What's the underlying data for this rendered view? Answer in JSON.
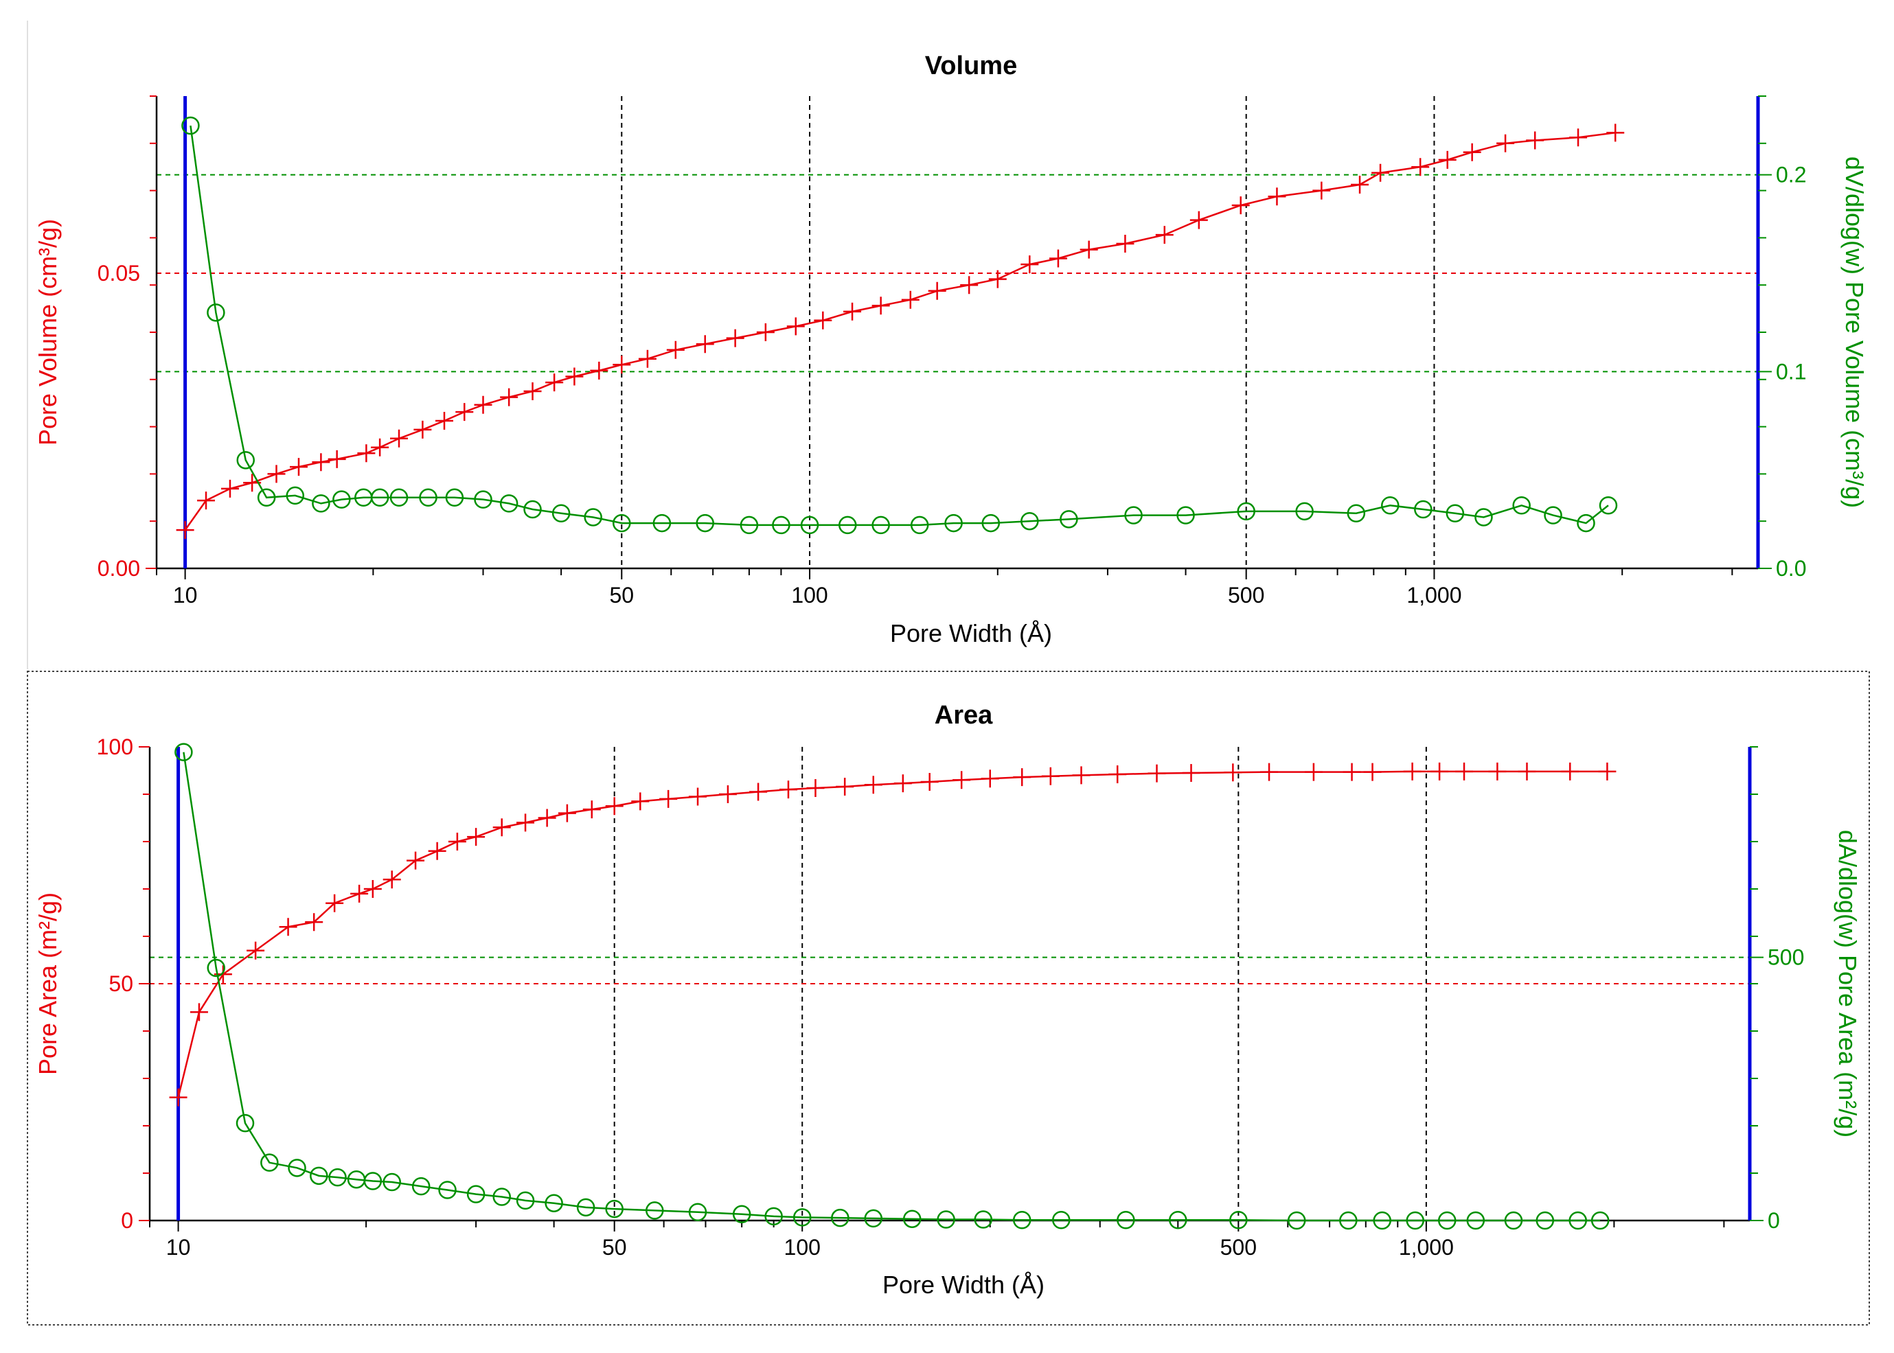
{
  "chart_data": [
    {
      "type": "line",
      "title": "Volume",
      "xlabel": "Pore Width (Å)",
      "ylabel": "Pore Volume (cm³/g)",
      "y2label": "dV/dlog(w) Pore Volume (cm³/g)",
      "xscale": "log",
      "xlim": [
        9,
        3300
      ],
      "ylim": [
        0,
        0.08
      ],
      "y2lim": [
        0,
        0.24
      ],
      "x_ticks": [
        10,
        50,
        100,
        500,
        1000
      ],
      "x_tick_labels": [
        "10",
        "50",
        "100",
        "500",
        "1,000"
      ],
      "y_ticks": [
        0,
        0.05
      ],
      "y_tick_labels": [
        "0.00",
        "0.05"
      ],
      "y2_ticks": [
        0,
        0.1,
        0.2
      ],
      "y2_tick_labels": [
        "0.0",
        "0.1",
        "0.2"
      ],
      "grid": true,
      "colors": {
        "cumulative": "#e8000b",
        "differential": "#009000",
        "axis": "#0000dd"
      },
      "series": [
        {
          "axis": "left",
          "marker": "plus",
          "color": "#e8000b",
          "x": [
            10,
            10.8,
            11.8,
            12.8,
            14,
            15.2,
            16.5,
            17.5,
            19.5,
            20.5,
            22,
            24,
            26,
            28,
            30,
            33,
            36,
            39,
            42,
            46,
            50,
            55,
            61,
            68,
            76,
            85,
            95,
            105,
            117,
            130,
            145,
            160,
            180,
            200,
            225,
            250,
            280,
            320,
            370,
            420,
            490,
            560,
            660,
            760,
            820,
            950,
            1050,
            1150,
            1300,
            1450,
            1700,
            1950
          ],
          "y": [
            0.0065,
            0.0115,
            0.0135,
            0.0145,
            0.016,
            0.0172,
            0.018,
            0.0185,
            0.0195,
            0.0205,
            0.022,
            0.0235,
            0.025,
            0.0265,
            0.0277,
            0.029,
            0.03,
            0.0315,
            0.0325,
            0.0335,
            0.0345,
            0.0355,
            0.037,
            0.038,
            0.039,
            0.04,
            0.041,
            0.042,
            0.0435,
            0.0445,
            0.0455,
            0.047,
            0.048,
            0.049,
            0.0515,
            0.0525,
            0.054,
            0.055,
            0.0565,
            0.059,
            0.0615,
            0.063,
            0.064,
            0.065,
            0.067,
            0.068,
            0.0692,
            0.0705,
            0.072,
            0.0725,
            0.073,
            0.0738
          ]
        },
        {
          "axis": "right",
          "marker": "circle",
          "color": "#009000",
          "x": [
            10.2,
            11.2,
            12.5,
            13.5,
            15,
            16.5,
            17.8,
            19.3,
            20.5,
            22,
            24.5,
            27,
            30,
            33,
            36,
            40,
            45,
            50,
            58,
            68,
            80,
            90,
            100,
            115,
            130,
            150,
            170,
            195,
            225,
            260,
            330,
            400,
            500,
            620,
            750,
            850,
            960,
            1080,
            1200,
            1380,
            1550,
            1750,
            1900
          ],
          "y": [
            0.225,
            0.13,
            0.055,
            0.036,
            0.037,
            0.033,
            0.035,
            0.036,
            0.036,
            0.036,
            0.036,
            0.036,
            0.035,
            0.033,
            0.03,
            0.028,
            0.026,
            0.023,
            0.023,
            0.023,
            0.022,
            0.022,
            0.022,
            0.022,
            0.022,
            0.022,
            0.023,
            0.023,
            0.024,
            0.025,
            0.027,
            0.027,
            0.029,
            0.029,
            0.028,
            0.032,
            0.03,
            0.028,
            0.026,
            0.032,
            0.027,
            0.023,
            0.032
          ]
        }
      ]
    },
    {
      "type": "line",
      "title": "Area",
      "xlabel": "Pore Width (Å)",
      "ylabel": "Pore Area (m²/g)",
      "y2label": "dA/dlog(w) Pore Area (m²/g)",
      "xscale": "log",
      "xlim": [
        9,
        3300
      ],
      "ylim": [
        0,
        100
      ],
      "y2lim": [
        0,
        900
      ],
      "x_ticks": [
        10,
        50,
        100,
        500,
        1000
      ],
      "x_tick_labels": [
        "10",
        "50",
        "100",
        "500",
        "1,000"
      ],
      "y_ticks": [
        0,
        50,
        100
      ],
      "y_tick_labels": [
        "0",
        "50",
        "100"
      ],
      "y2_ticks": [
        0,
        500
      ],
      "y2_tick_labels": [
        "0",
        "500"
      ],
      "grid": true,
      "colors": {
        "cumulative": "#e8000b",
        "differential": "#009000",
        "axis": "#0000dd"
      },
      "series": [
        {
          "axis": "left",
          "marker": "plus",
          "color": "#e8000b",
          "x": [
            10,
            10.8,
            11.8,
            13.3,
            15,
            16.5,
            17.8,
            19.5,
            20.5,
            22,
            24,
            26,
            28,
            30,
            33,
            36,
            39,
            42,
            46,
            50,
            55,
            61,
            68,
            76,
            85,
            95,
            105,
            117,
            130,
            145,
            160,
            180,
            200,
            225,
            250,
            280,
            320,
            370,
            420,
            490,
            560,
            660,
            760,
            820,
            950,
            1050,
            1150,
            1300,
            1450,
            1700,
            1950
          ],
          "y": [
            26,
            44,
            52,
            57,
            62,
            63,
            67,
            69,
            70,
            72,
            76,
            78,
            80,
            81,
            83,
            84,
            85,
            86,
            86.8,
            87.5,
            88.5,
            89,
            89.5,
            90,
            90.5,
            91,
            91.3,
            91.6,
            92,
            92.3,
            92.6,
            93,
            93.3,
            93.6,
            93.8,
            94,
            94.2,
            94.4,
            94.5,
            94.6,
            94.7,
            94.7,
            94.7,
            94.7,
            94.8,
            94.8,
            94.8,
            94.8,
            94.8,
            94.8,
            94.8
          ]
        },
        {
          "axis": "right",
          "marker": "circle",
          "color": "#009000",
          "x": [
            10.2,
            11.5,
            12.8,
            14,
            15.5,
            16.8,
            18,
            19.3,
            20.5,
            22,
            24.5,
            27,
            30,
            33,
            36,
            40,
            45,
            50,
            58,
            68,
            80,
            90,
            100,
            115,
            130,
            150,
            170,
            195,
            225,
            260,
            330,
            400,
            500,
            620,
            750,
            850,
            960,
            1080,
            1200,
            1380,
            1550,
            1750,
            1900
          ],
          "y": [
            890,
            480,
            185,
            110,
            100,
            85,
            82,
            78,
            75,
            73,
            65,
            58,
            50,
            45,
            38,
            33,
            25,
            22,
            19,
            16,
            12,
            8,
            6,
            5,
            4,
            3,
            2,
            2,
            1,
            1,
            1,
            1,
            1,
            0,
            0,
            0,
            0,
            0,
            0,
            0,
            0,
            0,
            0
          ]
        }
      ]
    }
  ]
}
